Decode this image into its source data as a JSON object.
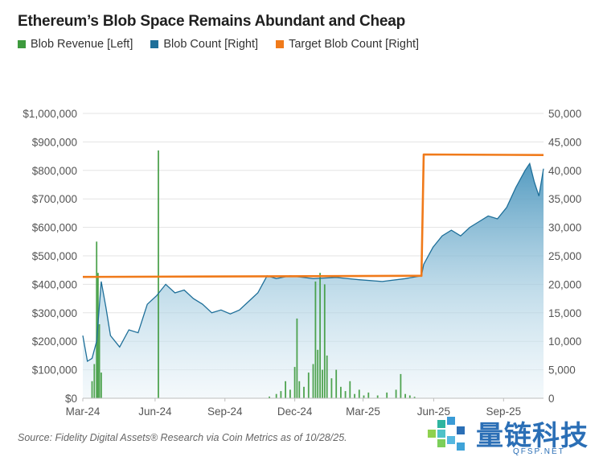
{
  "chart_data": {
    "type": "bar+line",
    "title": "Ethereum’s Blob Space Remains Abundant and Cheap",
    "legend": [
      {
        "name": "Blob Revenue [Left]",
        "color": "#3d9a3d"
      },
      {
        "name": "Blob Count [Right]",
        "color": "#1e6f99"
      },
      {
        "name": "Target Blob Count [Right]",
        "color": "#f07a1a"
      }
    ],
    "x_range": [
      "2024-03-13",
      "2025-10-28"
    ],
    "x_ticks": [
      {
        "label": "Mar-24",
        "t": 0
      },
      {
        "label": "Jun-24",
        "t": 0.1569
      },
      {
        "label": "Sep-24",
        "t": 0.3085
      },
      {
        "label": "Dec-24",
        "t": 0.4601
      },
      {
        "label": "Mar-25",
        "t": 0.6083
      },
      {
        "label": "Jun-25",
        "t": 0.7616
      },
      {
        "label": "Sep-25",
        "t": 0.9133
      }
    ],
    "left_axis": {
      "min": 0,
      "max": 1000000,
      "ticks": [
        "$0",
        "$100,000",
        "$200,000",
        "$300,000",
        "$400,000",
        "$500,000",
        "$600,000",
        "$700,000",
        "$800,000",
        "$900,000",
        "$1,000,000"
      ]
    },
    "right_axis": {
      "min": 0,
      "max": 50000,
      "ticks": [
        "0",
        "5,000",
        "10,000",
        "15,000",
        "20,000",
        "25,000",
        "30,000",
        "35,000",
        "40,000",
        "45,000",
        "50,000"
      ]
    },
    "target_blob_count": [
      {
        "t": 0.0,
        "value": 21300
      },
      {
        "t": 0.735,
        "value": 21500
      },
      {
        "t": 0.74,
        "value": 42800
      },
      {
        "t": 1.0,
        "value": 42700
      }
    ],
    "blob_count": [
      {
        "t": 0.0,
        "value": 11000
      },
      {
        "t": 0.01,
        "value": 6500
      },
      {
        "t": 0.02,
        "value": 7000
      },
      {
        "t": 0.03,
        "value": 10000
      },
      {
        "t": 0.04,
        "value": 20500
      },
      {
        "t": 0.05,
        "value": 16000
      },
      {
        "t": 0.06,
        "value": 11000
      },
      {
        "t": 0.08,
        "value": 9000
      },
      {
        "t": 0.1,
        "value": 12000
      },
      {
        "t": 0.12,
        "value": 11500
      },
      {
        "t": 0.14,
        "value": 16500
      },
      {
        "t": 0.16,
        "value": 18000
      },
      {
        "t": 0.18,
        "value": 20000
      },
      {
        "t": 0.2,
        "value": 18500
      },
      {
        "t": 0.22,
        "value": 19000
      },
      {
        "t": 0.24,
        "value": 17500
      },
      {
        "t": 0.26,
        "value": 16500
      },
      {
        "t": 0.28,
        "value": 15000
      },
      {
        "t": 0.3,
        "value": 15500
      },
      {
        "t": 0.32,
        "value": 14800
      },
      {
        "t": 0.34,
        "value": 15500
      },
      {
        "t": 0.36,
        "value": 17000
      },
      {
        "t": 0.38,
        "value": 18500
      },
      {
        "t": 0.4,
        "value": 21500
      },
      {
        "t": 0.42,
        "value": 21000
      },
      {
        "t": 0.45,
        "value": 21500
      },
      {
        "t": 0.5,
        "value": 21000
      },
      {
        "t": 0.55,
        "value": 21200
      },
      {
        "t": 0.6,
        "value": 20800
      },
      {
        "t": 0.65,
        "value": 20500
      },
      {
        "t": 0.7,
        "value": 21000
      },
      {
        "t": 0.735,
        "value": 21500
      },
      {
        "t": 0.74,
        "value": 23500
      },
      {
        "t": 0.76,
        "value": 26500
      },
      {
        "t": 0.78,
        "value": 28500
      },
      {
        "t": 0.8,
        "value": 29500
      },
      {
        "t": 0.82,
        "value": 28500
      },
      {
        "t": 0.84,
        "value": 30000
      },
      {
        "t": 0.86,
        "value": 31000
      },
      {
        "t": 0.88,
        "value": 32000
      },
      {
        "t": 0.9,
        "value": 31500
      },
      {
        "t": 0.92,
        "value": 33500
      },
      {
        "t": 0.94,
        "value": 37000
      },
      {
        "t": 0.96,
        "value": 40000
      },
      {
        "t": 0.97,
        "value": 41200
      },
      {
        "t": 0.98,
        "value": 38000
      },
      {
        "t": 0.99,
        "value": 35500
      },
      {
        "t": 1.0,
        "value": 40300
      }
    ],
    "blob_revenue": [
      {
        "t": 0.02,
        "value": 60000
      },
      {
        "t": 0.025,
        "value": 120000
      },
      {
        "t": 0.03,
        "value": 550000
      },
      {
        "t": 0.033,
        "value": 440000
      },
      {
        "t": 0.036,
        "value": 260000
      },
      {
        "t": 0.04,
        "value": 90000
      },
      {
        "t": 0.164,
        "value": 870000
      },
      {
        "t": 0.405,
        "value": 6000
      },
      {
        "t": 0.42,
        "value": 15000
      },
      {
        "t": 0.43,
        "value": 25000
      },
      {
        "t": 0.44,
        "value": 60000
      },
      {
        "t": 0.45,
        "value": 30000
      },
      {
        "t": 0.46,
        "value": 110000
      },
      {
        "t": 0.465,
        "value": 280000
      },
      {
        "t": 0.47,
        "value": 60000
      },
      {
        "t": 0.48,
        "value": 40000
      },
      {
        "t": 0.49,
        "value": 90000
      },
      {
        "t": 0.5,
        "value": 120000
      },
      {
        "t": 0.505,
        "value": 410000
      },
      {
        "t": 0.51,
        "value": 170000
      },
      {
        "t": 0.515,
        "value": 440000
      },
      {
        "t": 0.52,
        "value": 100000
      },
      {
        "t": 0.525,
        "value": 400000
      },
      {
        "t": 0.53,
        "value": 150000
      },
      {
        "t": 0.54,
        "value": 70000
      },
      {
        "t": 0.55,
        "value": 100000
      },
      {
        "t": 0.56,
        "value": 40000
      },
      {
        "t": 0.57,
        "value": 25000
      },
      {
        "t": 0.58,
        "value": 60000
      },
      {
        "t": 0.59,
        "value": 15000
      },
      {
        "t": 0.6,
        "value": 30000
      },
      {
        "t": 0.61,
        "value": 10000
      },
      {
        "t": 0.62,
        "value": 20000
      },
      {
        "t": 0.64,
        "value": 10000
      },
      {
        "t": 0.66,
        "value": 20000
      },
      {
        "t": 0.68,
        "value": 30000
      },
      {
        "t": 0.69,
        "value": 85000
      },
      {
        "t": 0.7,
        "value": 15000
      },
      {
        "t": 0.71,
        "value": 10000
      },
      {
        "t": 0.72,
        "value": 5000
      }
    ],
    "source": "Source: Fidelity Digital Assets® Research via Coin Metrics as of 10/28/25."
  },
  "watermark": {
    "text": "量链科技",
    "sub": "QFSP.NET"
  }
}
